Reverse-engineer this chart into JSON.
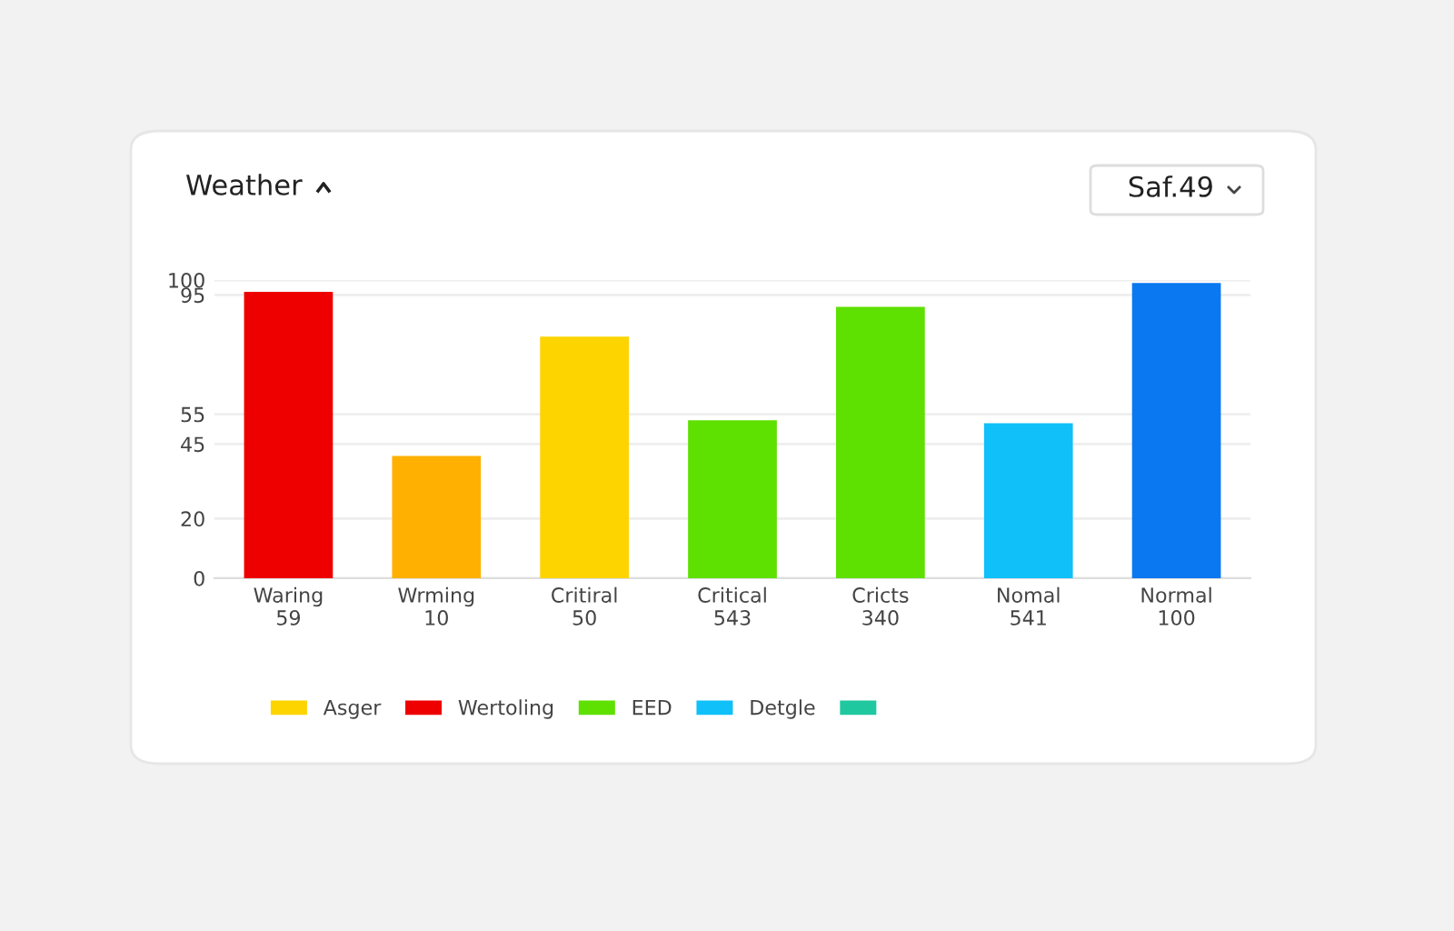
{
  "chart_data": {
    "type": "bar",
    "title": "Weather",
    "stacked": true,
    "categories": [
      "Waring\n59",
      "Wrming\n10",
      "Critiral\n50",
      "Critical\n543",
      "Cricts\n340",
      "Nomal\n541",
      "Normal\n100"
    ],
    "series": [
      {
        "name": "Asger",
        "color": "#fdd400",
        "values": [
          null,
          null,
          81,
          null,
          null,
          null,
          null
        ]
      },
      {
        "name": "Wertoling",
        "color": "#ee0000",
        "values": [
          96,
          null,
          null,
          null,
          null,
          null,
          null
        ]
      },
      {
        "name": "EED",
        "color": "#5ee000",
        "values": [
          null,
          null,
          null,
          53,
          91,
          null,
          null
        ]
      },
      {
        "name": "Detgle",
        "color": "#10c0f8",
        "values": [
          null,
          null,
          null,
          null,
          null,
          52,
          null
        ]
      },
      {
        "color": "#20c8a0",
        "values": [
          null,
          null,
          null,
          null,
          null,
          null,
          null
        ]
      },
      {
        "color": "#ffb000",
        "values": [
          null,
          41,
          null,
          null,
          null,
          null,
          null
        ]
      },
      {
        "color": "#0a78f0",
        "values": [
          null,
          null,
          null,
          null,
          null,
          null,
          99
        ]
      }
    ],
    "ylim": [
      0,
      100
    ],
    "yticks": [
      0,
      20,
      45,
      55,
      95,
      100
    ],
    "grid": "y",
    "legend": "bottom",
    "annotations": [
      "Saf.49"
    ]
  }
}
